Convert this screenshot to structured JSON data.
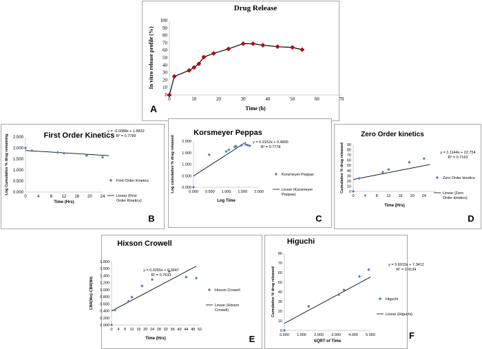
{
  "chart_data": [
    {
      "id": "A",
      "type": "line",
      "title": "Drug Release",
      "xlabel": "Time (h)",
      "ylabel": "In vitro release profile (%)",
      "xlim": [
        0,
        70
      ],
      "ylim": [
        0,
        100
      ],
      "xticks": [
        0,
        10,
        20,
        30,
        40,
        50,
        60,
        70
      ],
      "yticks": [
        0,
        10,
        20,
        30,
        40,
        50,
        60,
        70,
        80,
        90,
        100
      ],
      "x": [
        0,
        2,
        8,
        10,
        12,
        14,
        18,
        24,
        30,
        34,
        38,
        44,
        50,
        54
      ],
      "y": [
        0,
        25,
        33,
        37,
        42,
        51,
        56,
        62,
        69,
        69,
        67,
        65,
        64,
        61
      ],
      "panel_letter": "A",
      "marker_color": "#c00000",
      "line_color": "#000000"
    },
    {
      "id": "B",
      "type": "scatter",
      "title": "First Order Kinetics",
      "xlabel": "Time (Hrs)",
      "ylabel": "Log Cumulative % drug remaining",
      "xlim": [
        0,
        24
      ],
      "ylim": [
        0,
        2.5
      ],
      "xticks": [
        0,
        4,
        8,
        12,
        16,
        20,
        24
      ],
      "yticks": [
        "0.000",
        "0.500",
        "1.000",
        "1.500",
        "2.000",
        "2.500"
      ],
      "x": [
        0,
        2,
        10,
        12,
        19,
        24
      ],
      "y": [
        2.0,
        1.88,
        1.8,
        1.76,
        1.66,
        1.58
      ],
      "trendline": {
        "slope": -0.0088,
        "intercept": 1.8832,
        "x_range": [
          0,
          26
        ]
      },
      "equation": "y = -0.0088x + 1.8832",
      "r2": "R² = 0.7789",
      "legend": [
        "First Order Kinetics",
        "Linear (First Order Kinetics)"
      ],
      "panel_letter": "B",
      "marker_color": "#4f81bd"
    },
    {
      "id": "C",
      "type": "scatter",
      "title": "Korsmeyer Peppas",
      "xlabel": "Log Time",
      "ylabel": "Log cumulative % drug released",
      "xlim": [
        0,
        2
      ],
      "ylim": [
        0,
        2
      ],
      "xticks": [
        "0.000",
        "0.500",
        "1.000",
        "1.500",
        "2.000"
      ],
      "yticks": [
        "0.000",
        "0.500",
        "1.000",
        "1.500",
        "2.000"
      ],
      "x": [
        0,
        0.48,
        1.0,
        1.08,
        1.26,
        1.3,
        1.46,
        1.6,
        1.66,
        1.72
      ],
      "y": [
        0,
        1.41,
        1.55,
        1.62,
        1.75,
        1.78,
        1.81,
        1.85,
        1.82,
        1.8
      ],
      "trendline": {
        "slope": 0.9152,
        "intercept": 0.4865,
        "x_range": [
          0,
          1.6
        ]
      },
      "equation": "y = 0.9152x + 0.4865",
      "r2": "R² = 0.7778",
      "legend": [
        "Korsmeyer Peppas",
        "Linear (Korsmeyer Peppas)"
      ],
      "panel_letter": "C",
      "marker_color": "#4f81bd"
    },
    {
      "id": "D",
      "type": "scatter",
      "title": "Zero Order kinetics",
      "xlabel": "Time (Hrs)",
      "ylabel": "Cumulative % drug released",
      "xlim": [
        0,
        28
      ],
      "ylim": [
        0,
        90
      ],
      "xticks": [
        0,
        4,
        8,
        12,
        16,
        20,
        24
      ],
      "yticks": [
        0,
        10,
        20,
        30,
        40,
        50,
        60,
        70,
        80,
        90
      ],
      "x": [
        0,
        2,
        10,
        12,
        19,
        24
      ],
      "y": [
        0,
        25,
        37,
        42,
        56,
        63
      ],
      "trendline": {
        "slope": 1.1144,
        "intercept": 22.754,
        "x_range": [
          0,
          26
        ]
      },
      "equation": "y = 1.1144x + 22.754",
      "r2": "R² = 0.7163",
      "legend": [
        "Zero Order kinetics",
        "Linear (Zero Order kinetics)"
      ],
      "panel_letter": "D",
      "marker_color": "#4f81bd"
    },
    {
      "id": "E",
      "type": "scatter",
      "title": "Hixson Crowell",
      "xlabel": "Time (Hrs)",
      "ylabel": "CBR(Wo)-CBR(Wt)",
      "xlim": [
        0,
        52
      ],
      "ylim": [
        0,
        1.8
      ],
      "xticks": [
        0,
        4,
        8,
        12,
        16,
        20,
        24,
        28,
        32,
        36,
        40,
        44,
        48,
        52
      ],
      "yticks": [
        "0.000",
        "0.200",
        "0.400",
        "0.600",
        "0.800",
        "1.000",
        "1.200",
        "1.400",
        "1.600",
        "1.800"
      ],
      "x": [
        0,
        2,
        10,
        12,
        18,
        24,
        34,
        44,
        50
      ],
      "y": [
        0,
        0.42,
        0.67,
        0.79,
        1.11,
        1.29,
        1.52,
        1.36,
        1.33
      ],
      "trendline": {
        "slope": 0.0255,
        "intercept": 0.3947,
        "x_range": [
          0,
          50
        ]
      },
      "equation": "y = 0.0255x + 0.3947",
      "r2": "R² = 0.7633",
      "legend": [
        "Hixson Crowell",
        "Linear (Hixson Crowell)"
      ],
      "panel_letter": "E",
      "marker_color": "#4f81bd"
    },
    {
      "id": "F",
      "type": "scatter",
      "title": "Higuchi",
      "xlabel": "SQRT of Time",
      "ylabel": "Cumulative % drug released",
      "xlim": [
        0,
        5
      ],
      "ylim": [
        0,
        80
      ],
      "xticks": [
        "0.000",
        "1.000",
        "2.000",
        "3.000",
        "4.000",
        "5.000"
      ],
      "yticks": [
        0,
        10,
        20,
        30,
        40,
        50,
        60,
        70,
        80
      ],
      "x": [
        0,
        1.41,
        3.16,
        3.46,
        4.36,
        4.9
      ],
      "y": [
        0,
        25,
        37,
        42,
        56,
        63
      ],
      "trendline": {
        "slope": 9.6015,
        "intercept": 7.3412,
        "x_range": [
          0,
          5
        ]
      },
      "equation": "y = 9.6015x + 7.3412",
      "r2": "R² = 0.9134",
      "legend": [
        "Higuchi",
        "Linear (Higuchi)"
      ],
      "panel_letter": "F",
      "marker_color": "#4f81bd"
    }
  ]
}
